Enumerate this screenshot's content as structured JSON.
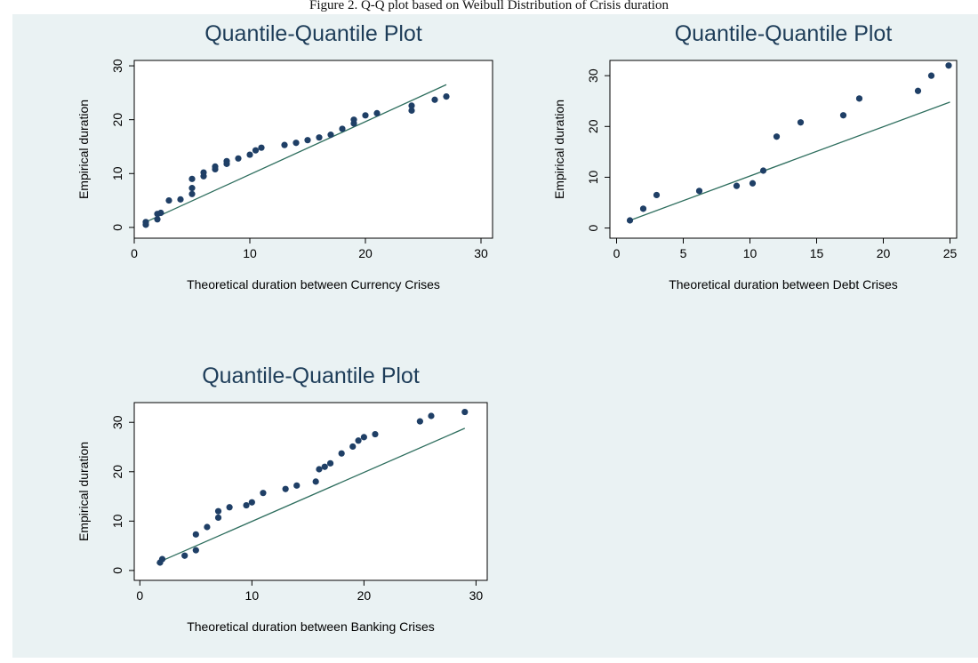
{
  "caption": "Figure 2. Q-Q plot based on Weibull Distribution of Crisis duration",
  "colors": {
    "background": "#eaf2f3",
    "plot_area": "#ffffff",
    "title": "#1e3d59",
    "marker": "#1f3f66",
    "fit_line": "#2e6e5e"
  },
  "chart_data": [
    {
      "type": "scatter",
      "title": "Quantile-Quantile Plot",
      "xlabel": "Theoretical duration between Currency Crises",
      "ylabel": "Empirical duration",
      "xlim": [
        0,
        31
      ],
      "ylim": [
        -2,
        31
      ],
      "xticks": [
        0,
        10,
        20,
        30
      ],
      "yticks": [
        0,
        10,
        20,
        30
      ],
      "grid": false,
      "reference_line": [
        [
          1,
          1
        ],
        [
          27,
          26.5
        ]
      ],
      "points": [
        [
          1,
          0.5
        ],
        [
          1,
          1
        ],
        [
          2,
          1.5
        ],
        [
          2,
          2.5
        ],
        [
          2.3,
          2.7
        ],
        [
          3,
          5
        ],
        [
          4,
          5.2
        ],
        [
          5,
          6.2
        ],
        [
          5,
          7.3
        ],
        [
          5,
          9
        ],
        [
          6,
          9.5
        ],
        [
          6,
          10.2
        ],
        [
          7,
          10.8
        ],
        [
          7,
          11.3
        ],
        [
          8,
          11.8
        ],
        [
          8,
          12.3
        ],
        [
          9,
          12.8
        ],
        [
          10,
          13.5
        ],
        [
          10.5,
          14.3
        ],
        [
          11,
          14.8
        ],
        [
          13,
          15.3
        ],
        [
          14,
          15.7
        ],
        [
          15,
          16.2
        ],
        [
          16,
          16.7
        ],
        [
          17,
          17.2
        ],
        [
          18,
          18.3
        ],
        [
          19,
          19.3
        ],
        [
          19,
          20
        ],
        [
          20,
          20.8
        ],
        [
          21,
          21.2
        ],
        [
          24,
          21.7
        ],
        [
          24,
          22.6
        ],
        [
          26,
          23.7
        ],
        [
          27,
          24.3
        ]
      ]
    },
    {
      "type": "scatter",
      "title": "Quantile-Quantile Plot",
      "xlabel": "Theoretical duration between Debt Crises",
      "ylabel": "Empirical duration",
      "xlim": [
        -0.5,
        25.5
      ],
      "ylim": [
        -2,
        33
      ],
      "xticks": [
        0,
        5,
        10,
        15,
        20,
        25
      ],
      "yticks": [
        0,
        10,
        20,
        30
      ],
      "grid": false,
      "reference_line": [
        [
          1,
          1.5
        ],
        [
          25,
          24.8
        ]
      ],
      "points": [
        [
          1,
          1.5
        ],
        [
          2,
          3.8
        ],
        [
          3,
          6.5
        ],
        [
          6.2,
          7.3
        ],
        [
          9,
          8.3
        ],
        [
          10.2,
          8.8
        ],
        [
          11,
          11.3
        ],
        [
          12,
          18
        ],
        [
          13.8,
          20.8
        ],
        [
          17,
          22.2
        ],
        [
          18.2,
          25.5
        ],
        [
          22.6,
          27
        ],
        [
          23.6,
          30
        ],
        [
          24.9,
          32
        ]
      ]
    },
    {
      "type": "scatter",
      "title": "Quantile-Quantile Plot",
      "xlabel": "Theoretical duration between Banking Crises",
      "ylabel": "Empirical duration",
      "xlim": [
        -0.5,
        31
      ],
      "ylim": [
        -2,
        34
      ],
      "xticks": [
        0,
        10,
        20,
        30
      ],
      "yticks": [
        0,
        10,
        20,
        30
      ],
      "grid": false,
      "reference_line": [
        [
          1.5,
          1.5
        ],
        [
          29,
          28.8
        ]
      ],
      "points": [
        [
          1.8,
          1.6
        ],
        [
          2,
          2.3
        ],
        [
          4,
          3
        ],
        [
          5,
          4.1
        ],
        [
          5,
          7.3
        ],
        [
          6,
          8.8
        ],
        [
          7,
          10.7
        ],
        [
          7,
          12
        ],
        [
          8,
          12.8
        ],
        [
          9.5,
          13.2
        ],
        [
          10,
          13.8
        ],
        [
          11,
          15.7
        ],
        [
          13,
          16.5
        ],
        [
          14,
          17.2
        ],
        [
          15.7,
          18
        ],
        [
          16,
          20.5
        ],
        [
          16.5,
          21
        ],
        [
          17,
          21.7
        ],
        [
          18,
          23.7
        ],
        [
          19,
          25.1
        ],
        [
          19.5,
          26.3
        ],
        [
          20,
          27
        ],
        [
          21,
          27.6
        ],
        [
          25,
          30.2
        ],
        [
          26,
          31.3
        ],
        [
          29,
          32.1
        ]
      ]
    }
  ]
}
